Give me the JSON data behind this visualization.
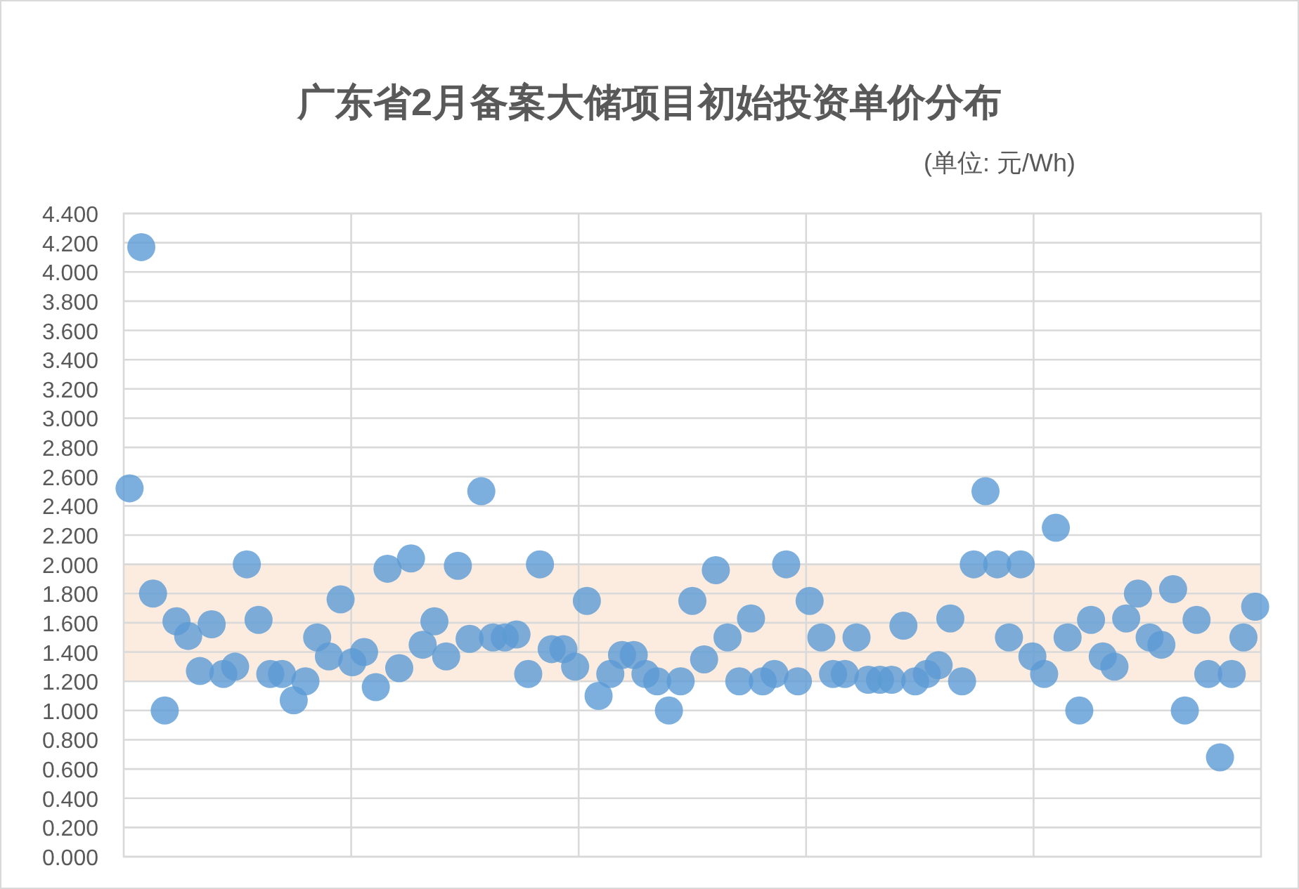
{
  "chart_data": {
    "type": "scatter",
    "title": "广东省2月备案大储项目初始投资单价分布",
    "subtitle": "(单位: 元/Wh)",
    "categories": [
      null,
      null,
      null,
      null,
      null,
      null,
      null,
      null,
      null,
      null,
      null,
      null,
      null,
      null,
      null,
      null,
      null,
      null,
      null,
      null,
      null,
      null,
      null,
      null,
      null,
      null,
      null,
      null,
      null,
      null,
      null,
      null,
      null,
      null,
      null,
      null,
      null,
      null,
      null,
      null,
      null,
      null,
      null,
      null,
      null,
      null,
      null,
      null,
      null,
      null,
      null,
      null,
      null,
      null,
      null,
      null,
      null,
      null,
      null,
      null,
      null,
      null,
      null,
      null,
      null,
      null,
      null,
      null,
      null,
      null,
      null,
      null,
      null,
      null,
      null,
      null,
      null,
      null,
      null,
      null,
      null,
      null,
      null,
      null,
      null,
      null,
      null,
      null,
      null,
      null,
      null,
      null,
      null,
      null,
      null,
      null,
      null
    ],
    "series": [
      {
        "color": "#5b9bd5",
        "values": [
          2.52,
          4.17,
          1.8,
          1.0,
          1.61,
          1.51,
          1.27,
          1.59,
          1.25,
          1.3,
          2.0,
          1.62,
          1.25,
          1.25,
          1.07,
          1.2,
          1.5,
          1.37,
          1.76,
          1.33,
          1.4,
          1.16,
          1.97,
          1.29,
          2.04,
          1.45,
          1.61,
          1.37,
          1.99,
          1.49,
          2.5,
          1.5,
          1.5,
          1.52,
          1.25,
          2.0,
          1.42,
          1.42,
          1.3,
          1.75,
          1.1,
          1.25,
          1.38,
          1.38,
          1.25,
          1.2,
          1.0,
          1.2,
          1.75,
          1.35,
          1.96,
          1.5,
          1.2,
          1.63,
          1.2,
          1.25,
          2.0,
          1.2,
          1.75,
          1.5,
          1.25,
          1.25,
          1.5,
          1.21,
          1.21,
          1.21,
          1.58,
          1.2,
          1.25,
          1.31,
          1.63,
          1.2,
          2.0,
          2.5,
          2.0,
          1.5,
          2.0,
          1.37,
          1.25,
          2.25,
          1.5,
          1.0,
          1.62,
          1.37,
          1.3,
          1.63,
          1.8,
          1.5,
          1.45,
          1.83,
          1.0,
          1.62,
          1.25,
          0.68,
          1.25,
          1.5,
          1.71
        ]
      }
    ],
    "ylim": [
      0,
      4.4
    ],
    "yticks": [
      {
        "value": 0,
        "label": "0.000"
      },
      {
        "value": 0.2,
        "label": "0.200"
      },
      {
        "value": 0.4,
        "label": "0.400"
      },
      {
        "value": 0.6,
        "label": "0.600"
      },
      {
        "value": 0.8,
        "label": "0.800"
      },
      {
        "value": 1.0,
        "label": "1.000"
      },
      {
        "value": 1.2,
        "label": "1.200"
      },
      {
        "value": 1.4,
        "label": "1.400"
      },
      {
        "value": 1.6,
        "label": "1.600"
      },
      {
        "value": 1.8,
        "label": "1.800"
      },
      {
        "value": 2.0,
        "label": "2.000"
      },
      {
        "value": 2.2,
        "label": "2.200"
      },
      {
        "value": 2.4,
        "label": "2.400"
      },
      {
        "value": 2.6,
        "label": "2.600"
      },
      {
        "value": 2.8,
        "label": "2.800"
      },
      {
        "value": 3.0,
        "label": "3.000"
      },
      {
        "value": 3.2,
        "label": "3.200"
      },
      {
        "value": 3.4,
        "label": "3.400"
      },
      {
        "value": 3.6,
        "label": "3.600"
      },
      {
        "value": 3.8,
        "label": "3.800"
      },
      {
        "value": 4.0,
        "label": "4.000"
      },
      {
        "value": 4.2,
        "label": "4.200"
      },
      {
        "value": 4.4,
        "label": "4.400"
      }
    ],
    "bands": [
      {
        "axis": "y",
        "from": 1.2,
        "to": 2.0,
        "color": "#fbe5d6"
      }
    ],
    "grid": true,
    "marker": "circle",
    "tick_labels": "y"
  }
}
